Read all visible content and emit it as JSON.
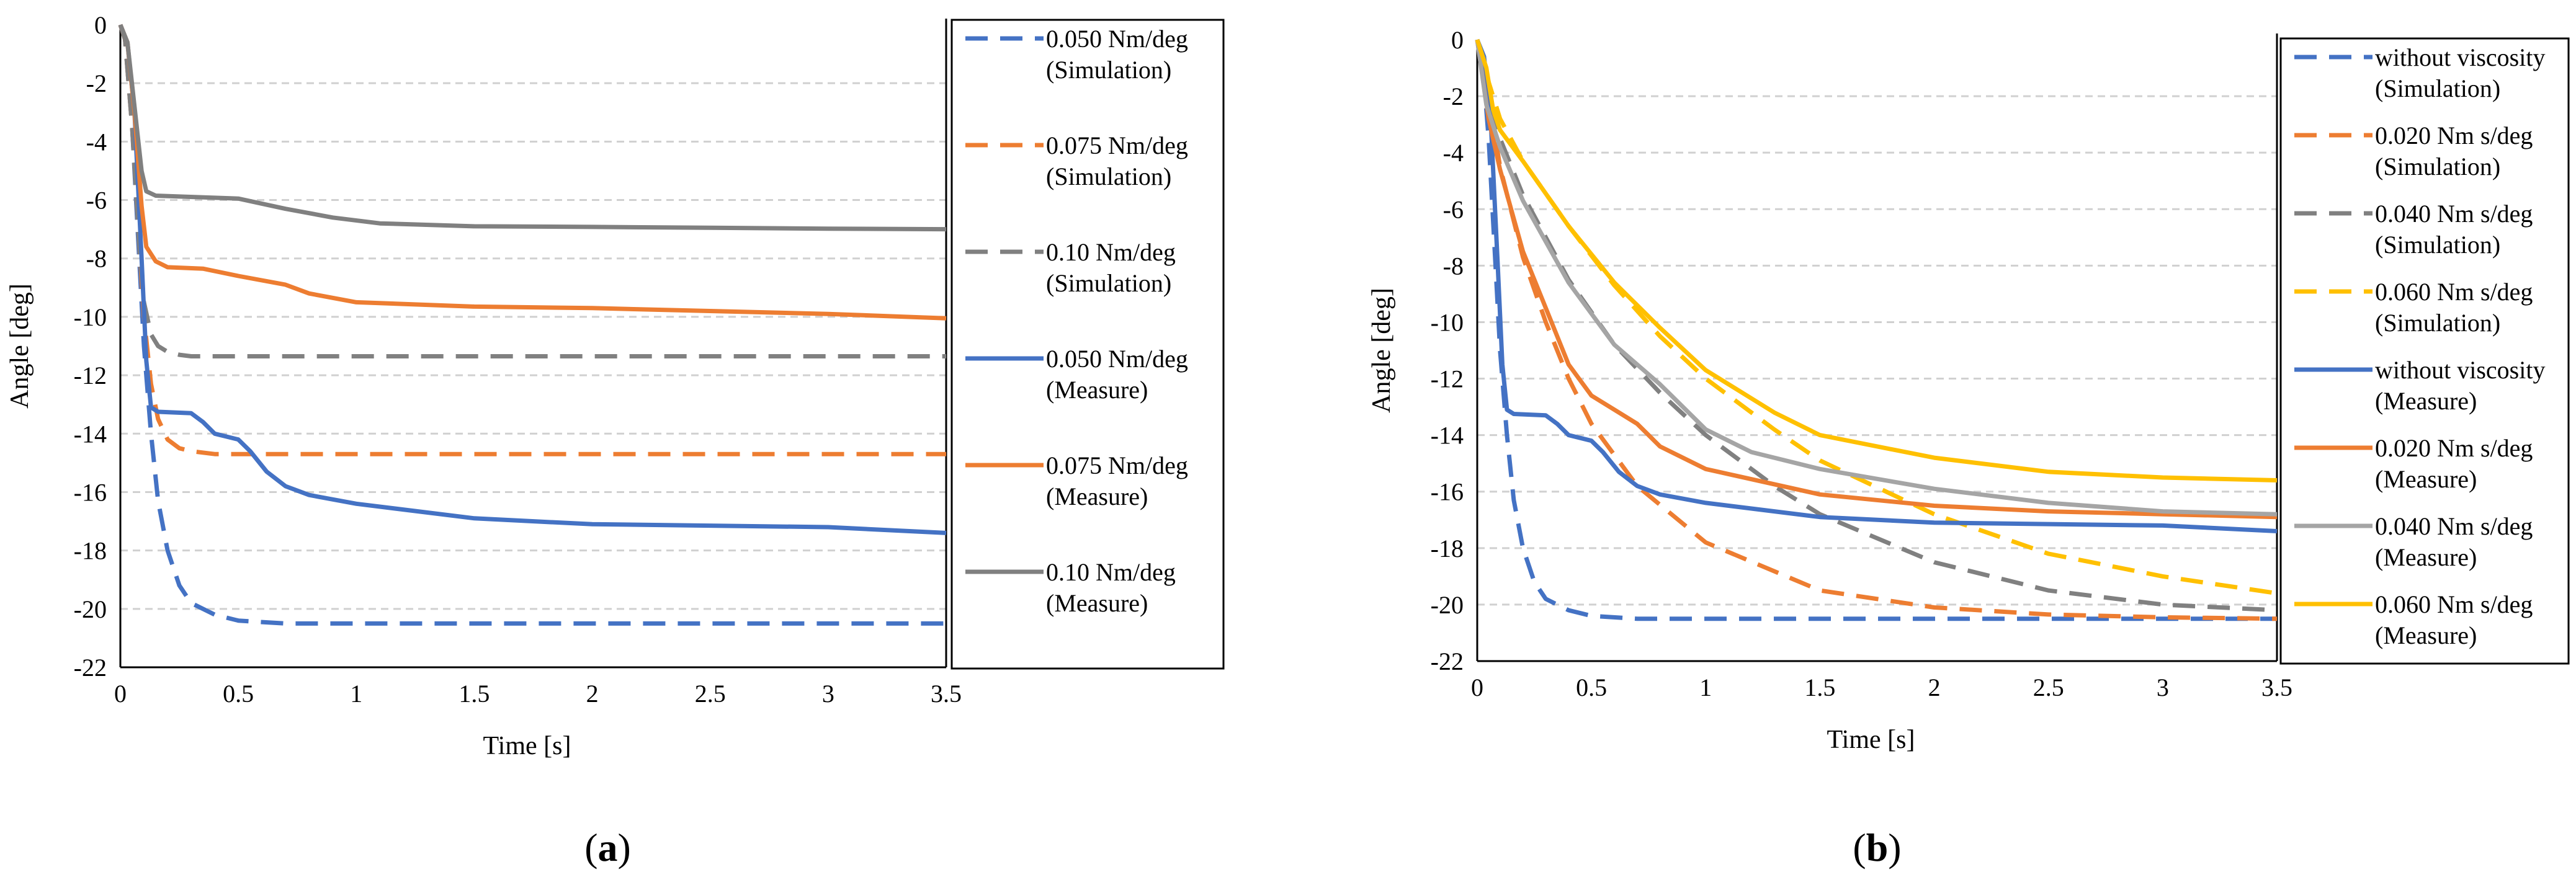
{
  "chart_data": [
    {
      "id": "a",
      "type": "line",
      "caption": "a",
      "xlabel": "Time [s]",
      "ylabel": "Angle [deg]",
      "xlim": [
        0,
        3.5
      ],
      "ylim": [
        -22,
        0
      ],
      "xticks": [
        "0",
        "0.5",
        "1",
        "1.5",
        "2",
        "2.5",
        "3",
        "3.5"
      ],
      "yticks": [
        "0",
        "-2",
        "-4",
        "-6",
        "-8",
        "-10",
        "-12",
        "-14",
        "-16",
        "-18",
        "-20",
        "-22"
      ],
      "grid": true,
      "legend_position": "right",
      "series": [
        {
          "name": "0.050 Nm/deg",
          "name2": "(Simulation)",
          "color": "#4472C4",
          "dash": true,
          "points": [
            [
              0,
              0
            ],
            [
              0.02,
              -0.5
            ],
            [
              0.05,
              -3.5
            ],
            [
              0.08,
              -8
            ],
            [
              0.1,
              -11
            ],
            [
              0.13,
              -14
            ],
            [
              0.16,
              -16.3
            ],
            [
              0.2,
              -18
            ],
            [
              0.25,
              -19.2
            ],
            [
              0.3,
              -19.8
            ],
            [
              0.4,
              -20.2
            ],
            [
              0.5,
              -20.4
            ],
            [
              0.7,
              -20.5
            ],
            [
              1,
              -20.5
            ],
            [
              3.5,
              -20.5
            ]
          ]
        },
        {
          "name": "0.075 Nm/deg",
          "name2": "(Simulation)",
          "color": "#ED7D31",
          "dash": true,
          "points": [
            [
              0,
              0
            ],
            [
              0.02,
              -0.5
            ],
            [
              0.05,
              -3.5
            ],
            [
              0.08,
              -7.5
            ],
            [
              0.1,
              -10
            ],
            [
              0.13,
              -12.3
            ],
            [
              0.16,
              -13.5
            ],
            [
              0.2,
              -14.2
            ],
            [
              0.25,
              -14.5
            ],
            [
              0.3,
              -14.6
            ],
            [
              0.4,
              -14.7
            ],
            [
              3.5,
              -14.7
            ]
          ]
        },
        {
          "name": "0.10 Nm/deg",
          "name2": "(Simulation)",
          "color": "#808080",
          "dash": true,
          "points": [
            [
              0,
              0
            ],
            [
              0.02,
              -0.5
            ],
            [
              0.05,
              -3.5
            ],
            [
              0.08,
              -7.5
            ],
            [
              0.1,
              -9.5
            ],
            [
              0.13,
              -10.6
            ],
            [
              0.16,
              -11
            ],
            [
              0.2,
              -11.2
            ],
            [
              0.25,
              -11.3
            ],
            [
              0.3,
              -11.35
            ],
            [
              3.5,
              -11.35
            ]
          ]
        },
        {
          "name": "0.050 Nm/deg",
          "name2": "(Measure)",
          "color": "#4472C4",
          "dash": false,
          "points": [
            [
              0,
              0
            ],
            [
              0.03,
              -0.6
            ],
            [
              0.06,
              -3
            ],
            [
              0.09,
              -8
            ],
            [
              0.11,
              -11.5
            ],
            [
              0.13,
              -13.1
            ],
            [
              0.16,
              -13.25
            ],
            [
              0.3,
              -13.3
            ],
            [
              0.35,
              -13.6
            ],
            [
              0.4,
              -14
            ],
            [
              0.5,
              -14.2
            ],
            [
              0.55,
              -14.6
            ],
            [
              0.62,
              -15.3
            ],
            [
              0.7,
              -15.8
            ],
            [
              0.8,
              -16.1
            ],
            [
              1,
              -16.4
            ],
            [
              1.5,
              -16.9
            ],
            [
              2,
              -17.1
            ],
            [
              2.5,
              -17.15
            ],
            [
              3,
              -17.2
            ],
            [
              3.5,
              -17.4
            ]
          ]
        },
        {
          "name": "0.075 Nm/deg",
          "name2": "(Measure)",
          "color": "#ED7D31",
          "dash": false,
          "points": [
            [
              0,
              0
            ],
            [
              0.03,
              -0.6
            ],
            [
              0.06,
              -3
            ],
            [
              0.09,
              -6.2
            ],
            [
              0.11,
              -7.6
            ],
            [
              0.15,
              -8.1
            ],
            [
              0.2,
              -8.3
            ],
            [
              0.35,
              -8.35
            ],
            [
              0.5,
              -8.6
            ],
            [
              0.7,
              -8.9
            ],
            [
              0.8,
              -9.2
            ],
            [
              1,
              -9.5
            ],
            [
              1.5,
              -9.65
            ],
            [
              2,
              -9.7
            ],
            [
              2.5,
              -9.8
            ],
            [
              3,
              -9.9
            ],
            [
              3.5,
              -10.05
            ]
          ]
        },
        {
          "name": "0.10 Nm/deg",
          "name2": "(Measure)",
          "color": "#808080",
          "dash": false,
          "points": [
            [
              0,
              0
            ],
            [
              0.03,
              -0.6
            ],
            [
              0.06,
              -2.8
            ],
            [
              0.09,
              -5
            ],
            [
              0.11,
              -5.7
            ],
            [
              0.15,
              -5.85
            ],
            [
              0.5,
              -5.95
            ],
            [
              0.7,
              -6.3
            ],
            [
              0.9,
              -6.6
            ],
            [
              1.1,
              -6.8
            ],
            [
              1.5,
              -6.9
            ],
            [
              2,
              -6.92
            ],
            [
              2.5,
              -6.95
            ],
            [
              3,
              -6.98
            ],
            [
              3.5,
              -7
            ]
          ]
        }
      ]
    },
    {
      "id": "b",
      "type": "line",
      "caption": "b",
      "xlabel": "Time [s]",
      "ylabel": "Angle [deg]",
      "xlim": [
        0,
        3.5
      ],
      "ylim": [
        -22,
        0
      ],
      "xticks": [
        "0",
        "0.5",
        "1",
        "1.5",
        "2",
        "2.5",
        "3",
        "3.5"
      ],
      "yticks": [
        "0",
        "-2",
        "-4",
        "-6",
        "-8",
        "-10",
        "-12",
        "-14",
        "-16",
        "-18",
        "-20",
        "-22"
      ],
      "grid": true,
      "legend_position": "right",
      "series": [
        {
          "name": "without viscosity",
          "name2": "(Simulation)",
          "color": "#4472C4",
          "dash": true,
          "points": [
            [
              0,
              0
            ],
            [
              0.02,
              -0.5
            ],
            [
              0.05,
              -3.5
            ],
            [
              0.08,
              -8
            ],
            [
              0.1,
              -11
            ],
            [
              0.13,
              -14
            ],
            [
              0.16,
              -16.3
            ],
            [
              0.2,
              -18
            ],
            [
              0.25,
              -19.2
            ],
            [
              0.3,
              -19.8
            ],
            [
              0.4,
              -20.2
            ],
            [
              0.5,
              -20.4
            ],
            [
              0.7,
              -20.5
            ],
            [
              3.5,
              -20.5
            ]
          ]
        },
        {
          "name": "0.020 Nm s/deg",
          "name2": "(Simulation)",
          "color": "#ED7D31",
          "dash": true,
          "points": [
            [
              0,
              0
            ],
            [
              0.05,
              -2
            ],
            [
              0.1,
              -4.5
            ],
            [
              0.2,
              -7.7
            ],
            [
              0.3,
              -10
            ],
            [
              0.4,
              -12
            ],
            [
              0.5,
              -13.6
            ],
            [
              0.7,
              -15.8
            ],
            [
              1,
              -17.8
            ],
            [
              1.5,
              -19.5
            ],
            [
              2,
              -20.1
            ],
            [
              2.5,
              -20.35
            ],
            [
              3,
              -20.45
            ],
            [
              3.5,
              -20.5
            ]
          ]
        },
        {
          "name": "0.040 Nm s/deg",
          "name2": "(Simulation)",
          "color": "#808080",
          "dash": true,
          "points": [
            [
              0,
              0
            ],
            [
              0.05,
              -1.8
            ],
            [
              0.1,
              -3.5
            ],
            [
              0.2,
              -5.5
            ],
            [
              0.4,
              -8.5
            ],
            [
              0.6,
              -10.8
            ],
            [
              0.8,
              -12.5
            ],
            [
              1,
              -14
            ],
            [
              1.3,
              -15.8
            ],
            [
              1.5,
              -16.8
            ],
            [
              2,
              -18.5
            ],
            [
              2.5,
              -19.5
            ],
            [
              3,
              -20
            ],
            [
              3.5,
              -20.2
            ]
          ]
        },
        {
          "name": "0.060 Nm s/deg",
          "name2": "(Simulation)",
          "color": "#FFC000",
          "dash": true,
          "points": [
            [
              0,
              0
            ],
            [
              0.05,
              -1.5
            ],
            [
              0.1,
              -2.8
            ],
            [
              0.2,
              -4.3
            ],
            [
              0.4,
              -6.6
            ],
            [
              0.6,
              -8.7
            ],
            [
              0.8,
              -10.5
            ],
            [
              1,
              -12
            ],
            [
              1.3,
              -13.8
            ],
            [
              1.5,
              -14.9
            ],
            [
              2,
              -16.8
            ],
            [
              2.5,
              -18.2
            ],
            [
              3,
              -19
            ],
            [
              3.5,
              -19.6
            ]
          ]
        },
        {
          "name": "without viscosity",
          "name2": "(Measure)",
          "color": "#4472C4",
          "dash": false,
          "points": [
            [
              0,
              0
            ],
            [
              0.03,
              -0.6
            ],
            [
              0.06,
              -3
            ],
            [
              0.09,
              -8
            ],
            [
              0.11,
              -11.5
            ],
            [
              0.13,
              -13.1
            ],
            [
              0.16,
              -13.25
            ],
            [
              0.3,
              -13.3
            ],
            [
              0.35,
              -13.6
            ],
            [
              0.4,
              -14
            ],
            [
              0.5,
              -14.2
            ],
            [
              0.55,
              -14.6
            ],
            [
              0.62,
              -15.3
            ],
            [
              0.7,
              -15.8
            ],
            [
              0.8,
              -16.1
            ],
            [
              1,
              -16.4
            ],
            [
              1.5,
              -16.9
            ],
            [
              2,
              -17.1
            ],
            [
              2.5,
              -17.15
            ],
            [
              3,
              -17.2
            ],
            [
              3.5,
              -17.4
            ]
          ]
        },
        {
          "name": "0.020 Nm s/deg",
          "name2": "(Measure)",
          "color": "#ED7D31",
          "dash": false,
          "points": [
            [
              0,
              0
            ],
            [
              0.05,
              -2.8
            ],
            [
              0.1,
              -4.6
            ],
            [
              0.2,
              -7.5
            ],
            [
              0.3,
              -9.5
            ],
            [
              0.4,
              -11.5
            ],
            [
              0.5,
              -12.6
            ],
            [
              0.6,
              -13.1
            ],
            [
              0.7,
              -13.6
            ],
            [
              0.8,
              -14.4
            ],
            [
              1,
              -15.2
            ],
            [
              1.5,
              -16.1
            ],
            [
              2,
              -16.5
            ],
            [
              2.5,
              -16.7
            ],
            [
              3,
              -16.8
            ],
            [
              3.5,
              -16.9
            ]
          ]
        },
        {
          "name": "0.040 Nm s/deg",
          "name2": "(Measure)",
          "color": "#A5A5A5",
          "dash": false,
          "points": [
            [
              0,
              0
            ],
            [
              0.04,
              -2.3
            ],
            [
              0.1,
              -3.8
            ],
            [
              0.2,
              -5.7
            ],
            [
              0.4,
              -8.6
            ],
            [
              0.6,
              -10.8
            ],
            [
              0.8,
              -12.2
            ],
            [
              0.9,
              -13
            ],
            [
              1,
              -13.8
            ],
            [
              1.2,
              -14.6
            ],
            [
              1.5,
              -15.2
            ],
            [
              2,
              -15.9
            ],
            [
              2.5,
              -16.4
            ],
            [
              3,
              -16.7
            ],
            [
              3.5,
              -16.8
            ]
          ]
        },
        {
          "name": "0.060 Nm s/deg",
          "name2": "(Measure)",
          "color": "#FFC000",
          "dash": false,
          "points": [
            [
              0,
              0
            ],
            [
              0.04,
              -1
            ],
            [
              0.07,
              -2.5
            ],
            [
              0.1,
              -3.2
            ],
            [
              0.2,
              -4.3
            ],
            [
              0.4,
              -6.6
            ],
            [
              0.6,
              -8.6
            ],
            [
              0.8,
              -10.2
            ],
            [
              1,
              -11.7
            ],
            [
              1.3,
              -13.2
            ],
            [
              1.5,
              -14
            ],
            [
              2,
              -14.8
            ],
            [
              2.5,
              -15.3
            ],
            [
              3,
              -15.5
            ],
            [
              3.5,
              -15.6
            ]
          ]
        }
      ]
    }
  ]
}
